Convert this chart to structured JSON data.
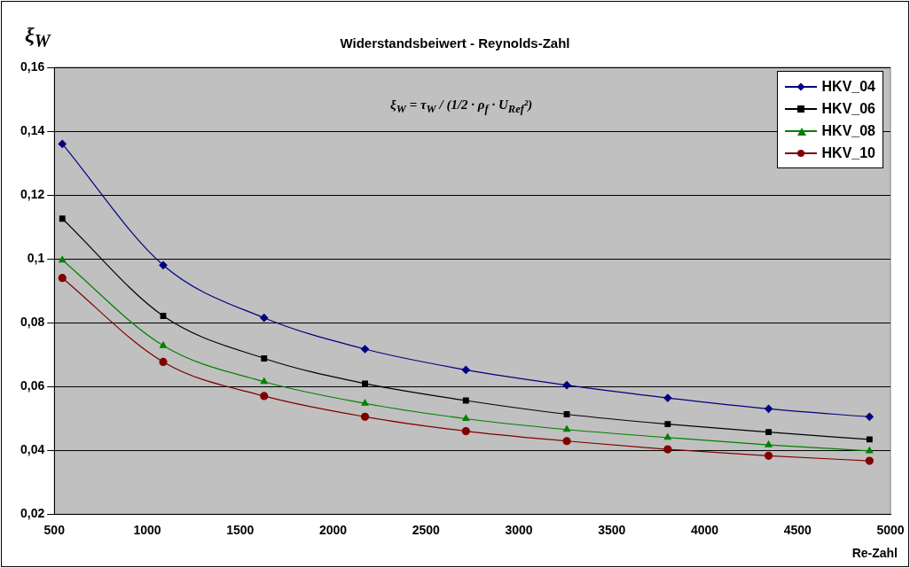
{
  "chart_data": {
    "type": "line",
    "title": "Widerstandsbeiwert - Reynolds-Zahl",
    "xlabel": "Re-Zahl",
    "ylabel": "ξ$_{W}$",
    "annotations": [
      "ξ$_{W}$ = τ$_{W}$ / (1/2 · ρ$_{f}$ · U$_{Ref}$²)"
    ],
    "x": [
      543,
      1086,
      1629,
      2172,
      2715,
      3258,
      3801,
      4344,
      4887
    ],
    "series": [
      {
        "name": "HKV_04",
        "color": "#000080",
        "marker": "diamond",
        "values": [
          0.136,
          0.098,
          0.0815,
          0.0717,
          0.0652,
          0.0604,
          0.0564,
          0.053,
          0.0505
        ]
      },
      {
        "name": "HKV_06",
        "color": "#000000",
        "marker": "square",
        "values": [
          0.1126,
          0.0821,
          0.0688,
          0.0609,
          0.0556,
          0.0513,
          0.0482,
          0.0457,
          0.0434
        ]
      },
      {
        "name": "HKV_08",
        "color": "#008000",
        "marker": "triangle",
        "values": [
          0.0996,
          0.0728,
          0.0615,
          0.0547,
          0.0499,
          0.0465,
          0.044,
          0.0417,
          0.0398
        ]
      },
      {
        "name": "HKV_10",
        "color": "#800000",
        "marker": "circle",
        "values": [
          0.094,
          0.0677,
          0.057,
          0.0505,
          0.046,
          0.0429,
          0.0403,
          0.0383,
          0.0367
        ]
      }
    ],
    "xlim": [
      500,
      5000
    ],
    "xticks": [
      500,
      1000,
      1500,
      2000,
      2500,
      3000,
      3500,
      4000,
      4500,
      5000
    ],
    "ylim": [
      0.02,
      0.16
    ],
    "yticks": [
      {
        "value": 0.02,
        "label": "0,02"
      },
      {
        "value": 0.04,
        "label": "0,04"
      },
      {
        "value": 0.06,
        "label": "0,06"
      },
      {
        "value": 0.08,
        "label": "0,08"
      },
      {
        "value": 0.1,
        "label": "0,1"
      },
      {
        "value": 0.12,
        "label": "0,12"
      },
      {
        "value": 0.14,
        "label": "0,14"
      },
      {
        "value": 0.16,
        "label": "0,16"
      }
    ],
    "grid": "y",
    "legend": "top right",
    "line_style": "solid"
  }
}
